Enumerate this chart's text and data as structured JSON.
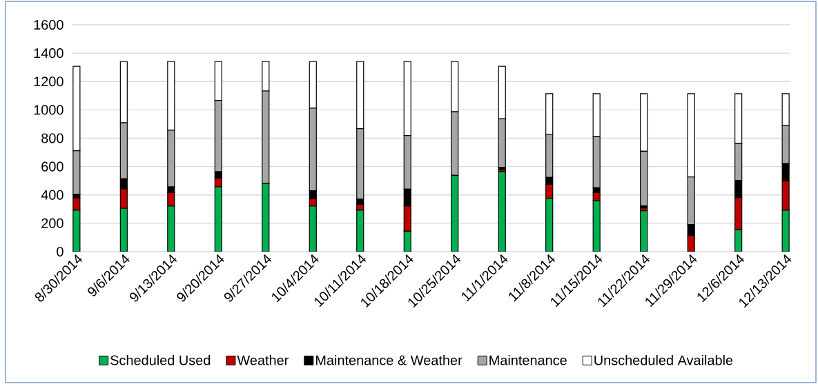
{
  "chart_data": {
    "type": "bar",
    "stacked": true,
    "categories": [
      "8/30/2014",
      "9/6/2014",
      "9/13/2014",
      "9/20/2014",
      "9/27/2014",
      "10/4/2014",
      "10/11/2014",
      "10/18/2014",
      "10/25/2014",
      "11/1/2014",
      "11/8/2014",
      "11/15/2014",
      "11/22/2014",
      "11/29/2014",
      "12/6/2014",
      "12/13/2014"
    ],
    "series": [
      {
        "name": "Scheduled Used",
        "color": "#00b050",
        "values": [
          292,
          305,
          321,
          457,
          481,
          321,
          292,
          144,
          538,
          564,
          376,
          358,
          289,
          0,
          154,
          292
        ]
      },
      {
        "name": "Weather",
        "color": "#c00000",
        "values": [
          86,
          138,
          97,
          63,
          0,
          52,
          42,
          177,
          0,
          15,
          99,
          59,
          19,
          113,
          227,
          206
        ]
      },
      {
        "name": "Maintenance & Weather",
        "color": "#000000",
        "values": [
          27,
          71,
          39,
          44,
          0,
          57,
          37,
          120,
          0,
          16,
          49,
          34,
          15,
          78,
          120,
          123
        ]
      },
      {
        "name": "Maintenance",
        "color": "#a6a6a6",
        "values": [
          307,
          395,
          399,
          503,
          652,
          582,
          496,
          378,
          449,
          342,
          304,
          360,
          385,
          336,
          261,
          271
        ]
      },
      {
        "name": "Unscheduled Available",
        "color": "#ffffff",
        "values": [
          596,
          432,
          485,
          274,
          208,
          329,
          474,
          522,
          354,
          371,
          286,
          303,
          406,
          587,
          352,
          222
        ]
      }
    ],
    "ylim": [
      0,
      1600
    ],
    "yticks": [
      0,
      200,
      400,
      600,
      800,
      1000,
      1200,
      1400,
      1600
    ],
    "grid": "y",
    "legend": "bottom"
  }
}
